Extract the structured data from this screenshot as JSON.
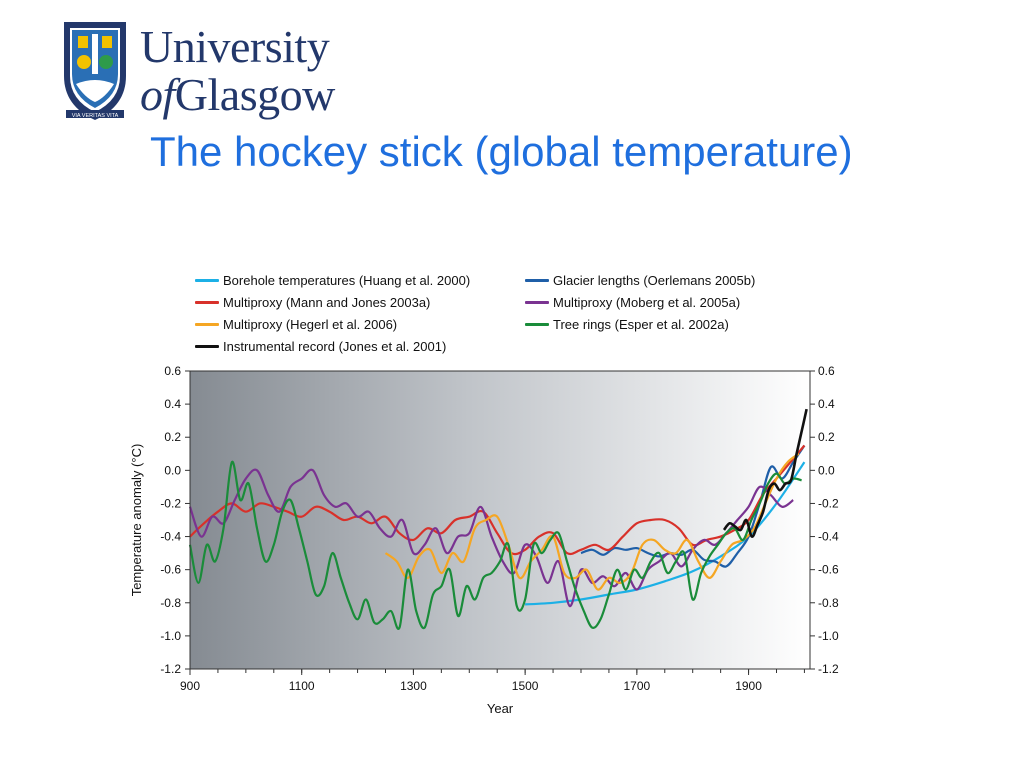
{
  "logo": {
    "line1": "University",
    "line2_of": "of",
    "line2_rest": "Glasgow",
    "motto": "VIA VERITAS VITA"
  },
  "slide": {
    "title": "The hockey stick (global temperature)"
  },
  "colors": {
    "title": "#1f6fde",
    "logo_navy": "#23386b",
    "plot_bg_dark": "#8a9097",
    "plot_bg_light": "#ffffff"
  },
  "chart_data": {
    "type": "line",
    "title": "",
    "xlabel": "Year",
    "ylabel": "Temperature anomaly (°C)",
    "xlim": [
      900,
      2010
    ],
    "ylim": [
      -1.2,
      0.6
    ],
    "x_ticks": [
      900,
      1100,
      1300,
      1500,
      1700,
      1900
    ],
    "y_ticks": [
      0.6,
      0.4,
      0.2,
      0.0,
      -0.2,
      -0.4,
      -0.6,
      -0.8,
      -1.0,
      -1.2
    ],
    "y_tick_labels": [
      "0.6",
      "0.4",
      "0.2",
      "0.0",
      "-0.2",
      "-0.4",
      "-0.6",
      "-0.8",
      "-1.0",
      "-1.2"
    ],
    "right_axis_mirrored": true,
    "grid": false,
    "legend_position": "top",
    "series": [
      {
        "name": "Borehole temperatures (Huang et al. 2000)",
        "color": "#1cb0e6",
        "x": [
          1500,
          1550,
          1600,
          1650,
          1700,
          1750,
          1800,
          1850,
          1900,
          1950,
          2000
        ],
        "y": [
          -0.81,
          -0.8,
          -0.78,
          -0.75,
          -0.72,
          -0.67,
          -0.61,
          -0.52,
          -0.4,
          -0.2,
          0.05
        ]
      },
      {
        "name": "Glacier lengths (Oerlemans 2005b)",
        "color": "#1f5fa8",
        "x": [
          1600,
          1620,
          1640,
          1660,
          1680,
          1700,
          1720,
          1740,
          1760,
          1780,
          1800,
          1820,
          1840,
          1860,
          1880,
          1900,
          1920,
          1940,
          1960,
          1980,
          2000
        ],
        "y": [
          -0.5,
          -0.48,
          -0.51,
          -0.47,
          -0.48,
          -0.47,
          -0.5,
          -0.52,
          -0.5,
          -0.51,
          -0.48,
          -0.54,
          -0.55,
          -0.58,
          -0.5,
          -0.4,
          -0.2,
          0.02,
          -0.05,
          0.05,
          0.15
        ]
      },
      {
        "name": "Multiproxy (Mann and Jones 2003a)",
        "color": "#d8312a",
        "x": [
          900,
          925,
          950,
          975,
          1000,
          1025,
          1050,
          1075,
          1100,
          1125,
          1150,
          1175,
          1200,
          1225,
          1250,
          1275,
          1300,
          1325,
          1350,
          1375,
          1400,
          1425,
          1450,
          1475,
          1500,
          1525,
          1550,
          1575,
          1600,
          1625,
          1650,
          1675,
          1700,
          1725,
          1750,
          1775,
          1800,
          1825,
          1850,
          1875,
          1900,
          1925,
          1950,
          1975,
          2000
        ],
        "y": [
          -0.4,
          -0.32,
          -0.25,
          -0.2,
          -0.25,
          -0.2,
          -0.22,
          -0.25,
          -0.28,
          -0.22,
          -0.25,
          -0.3,
          -0.28,
          -0.32,
          -0.28,
          -0.38,
          -0.42,
          -0.35,
          -0.38,
          -0.3,
          -0.28,
          -0.25,
          -0.38,
          -0.5,
          -0.48,
          -0.4,
          -0.38,
          -0.5,
          -0.48,
          -0.45,
          -0.48,
          -0.4,
          -0.32,
          -0.3,
          -0.3,
          -0.35,
          -0.45,
          -0.42,
          -0.4,
          -0.36,
          -0.3,
          -0.15,
          -0.05,
          0.05,
          0.15
        ]
      },
      {
        "name": "Multiproxy (Moberg et al. 2005a)",
        "color": "#7a3391",
        "x": [
          900,
          920,
          940,
          960,
          980,
          1000,
          1020,
          1040,
          1060,
          1080,
          1100,
          1120,
          1140,
          1160,
          1180,
          1200,
          1220,
          1240,
          1260,
          1280,
          1300,
          1320,
          1340,
          1360,
          1380,
          1400,
          1420,
          1440,
          1460,
          1480,
          1500,
          1520,
          1540,
          1560,
          1580,
          1600,
          1620,
          1640,
          1660,
          1680,
          1700,
          1720,
          1740,
          1760,
          1780,
          1800,
          1820,
          1840,
          1860,
          1880,
          1900,
          1920,
          1940,
          1960,
          1980
        ],
        "y": [
          -0.22,
          -0.4,
          -0.28,
          -0.32,
          -0.18,
          -0.05,
          0.0,
          -0.15,
          -0.25,
          -0.1,
          -0.05,
          0.0,
          -0.15,
          -0.22,
          -0.2,
          -0.28,
          -0.25,
          -0.35,
          -0.4,
          -0.3,
          -0.5,
          -0.45,
          -0.35,
          -0.5,
          -0.4,
          -0.38,
          -0.22,
          -0.4,
          -0.55,
          -0.62,
          -0.45,
          -0.52,
          -0.68,
          -0.55,
          -0.82,
          -0.6,
          -0.68,
          -0.64,
          -0.7,
          -0.62,
          -0.72,
          -0.6,
          -0.55,
          -0.5,
          -0.58,
          -0.48,
          -0.42,
          -0.45,
          -0.38,
          -0.3,
          -0.22,
          -0.1,
          -0.15,
          -0.22,
          -0.18
        ]
      },
      {
        "name": "Multiproxy (Hegerl et al. 2006)",
        "color": "#f5a623",
        "x": [
          1250,
          1270,
          1290,
          1310,
          1330,
          1350,
          1370,
          1390,
          1410,
          1430,
          1450,
          1470,
          1490,
          1510,
          1530,
          1550,
          1570,
          1590,
          1610,
          1630,
          1650,
          1670,
          1690,
          1710,
          1730,
          1750,
          1770,
          1790,
          1810,
          1830,
          1850,
          1870,
          1890,
          1910,
          1930,
          1950,
          1970,
          1990
        ],
        "y": [
          -0.5,
          -0.55,
          -0.65,
          -0.52,
          -0.48,
          -0.62,
          -0.5,
          -0.55,
          -0.35,
          -0.3,
          -0.28,
          -0.45,
          -0.65,
          -0.55,
          -0.48,
          -0.4,
          -0.62,
          -0.65,
          -0.6,
          -0.72,
          -0.65,
          -0.68,
          -0.62,
          -0.45,
          -0.42,
          -0.48,
          -0.5,
          -0.42,
          -0.55,
          -0.65,
          -0.55,
          -0.45,
          -0.42,
          -0.35,
          -0.2,
          -0.05,
          0.05,
          0.1
        ]
      },
      {
        "name": "Tree rings (Esper et al. 2002a)",
        "color": "#1a8c3a",
        "x": [
          900,
          915,
          930,
          945,
          960,
          975,
          990,
          1005,
          1020,
          1035,
          1050,
          1065,
          1080,
          1095,
          1110,
          1125,
          1140,
          1155,
          1170,
          1185,
          1200,
          1215,
          1230,
          1245,
          1260,
          1275,
          1290,
          1305,
          1320,
          1335,
          1350,
          1365,
          1380,
          1395,
          1410,
          1425,
          1440,
          1455,
          1470,
          1485,
          1500,
          1515,
          1530,
          1545,
          1560,
          1575,
          1590,
          1605,
          1620,
          1635,
          1650,
          1665,
          1680,
          1695,
          1710,
          1725,
          1740,
          1755,
          1770,
          1785,
          1800,
          1815,
          1830,
          1845,
          1860,
          1875,
          1890,
          1905,
          1920,
          1935,
          1950,
          1965,
          1980,
          1995
        ],
        "y": [
          -0.45,
          -0.68,
          -0.45,
          -0.55,
          -0.35,
          0.05,
          -0.18,
          -0.08,
          -0.35,
          -0.55,
          -0.45,
          -0.25,
          -0.18,
          -0.35,
          -0.55,
          -0.75,
          -0.7,
          -0.5,
          -0.65,
          -0.8,
          -0.9,
          -0.78,
          -0.92,
          -0.9,
          -0.85,
          -0.95,
          -0.6,
          -0.85,
          -0.95,
          -0.75,
          -0.7,
          -0.6,
          -0.88,
          -0.7,
          -0.78,
          -0.65,
          -0.62,
          -0.55,
          -0.45,
          -0.82,
          -0.78,
          -0.45,
          -0.5,
          -0.42,
          -0.38,
          -0.55,
          -0.72,
          -0.85,
          -0.95,
          -0.9,
          -0.75,
          -0.6,
          -0.72,
          -0.6,
          -0.65,
          -0.55,
          -0.5,
          -0.62,
          -0.55,
          -0.5,
          -0.78,
          -0.62,
          -0.52,
          -0.45,
          -0.38,
          -0.35,
          -0.42,
          -0.3,
          -0.2,
          -0.08,
          -0.02,
          -0.08,
          -0.05,
          -0.06
        ]
      },
      {
        "name": "Instrumental record (Jones et al. 2001)",
        "color": "#111111",
        "x": [
          1856,
          1866,
          1876,
          1886,
          1896,
          1906,
          1916,
          1926,
          1936,
          1946,
          1956,
          1966,
          1976,
          1986,
          1996,
          2004
        ],
        "y": [
          -0.36,
          -0.32,
          -0.34,
          -0.36,
          -0.3,
          -0.4,
          -0.33,
          -0.25,
          -0.12,
          -0.08,
          -0.12,
          -0.08,
          -0.06,
          0.1,
          0.25,
          0.37
        ]
      }
    ]
  }
}
